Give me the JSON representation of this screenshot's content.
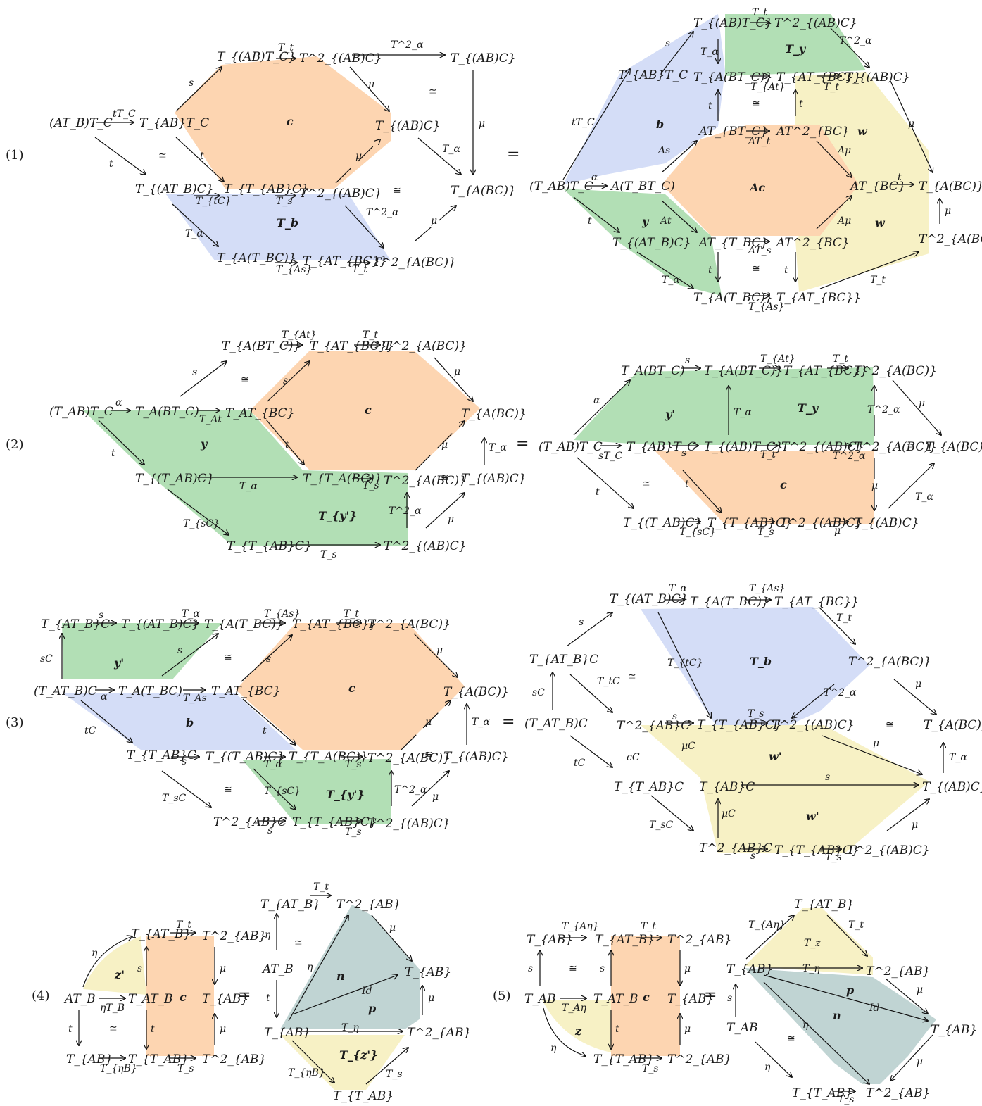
{
  "colors": {
    "orange": "#fdd5b1",
    "blue": "#d4ddf7",
    "green": "#b2dfb5",
    "yellow": "#f7f1c5",
    "teal": "#c0d4d3"
  },
  "rows": [
    {
      "number": "(1)",
      "equals": "=",
      "left": {
        "objects": [
          "(AT_B)T_C",
          "T_{AB}T_C",
          "T_{(AB)T_C}",
          "T^2_{(AB)C}",
          "T_{(AB)C}",
          "T_{(AB)C}",
          "T_{(AT_B)C}",
          "T_{T_{AB}C}",
          "T^2_{(AB)C}",
          "T_{A(BC)}",
          "T_{A(T_BC)}",
          "T_{AT_{BC}}",
          "T^2_{A(BC)}"
        ],
        "labels": [
          "tT_C",
          "t",
          "s",
          "T_t",
          "T^2_α",
          "μ",
          "μ",
          "T_α",
          "t",
          "μ",
          "T_{tC}",
          "T_s",
          "T^2_α",
          "T_α",
          "T_{As}",
          "T_t",
          "μ"
        ],
        "cells": [
          "c",
          "T_b"
        ],
        "isos": [
          "≅",
          "≅",
          "≅"
        ]
      },
      "right": {
        "objects": [
          "(AT_B)T_C",
          "A(T_BT_C)",
          "T_{AB}T_C",
          "T_{(AB)T_C}",
          "T^2_{(AB)C}",
          "T_{A(BT_C)}",
          "T_{AT_{BC}}",
          "T_{(AB)C}",
          "AT_{BT_C}",
          "AT^2_{BC}",
          "AT_{BC}",
          "T_{A(BC)}",
          "T^2_{A(BC)}",
          "T_{(AT_B)C}",
          "AT_{T_BC}",
          "AT^2_{BC}",
          "T_{A(T_BC)}",
          "T_{AT_{BC}}"
        ],
        "labels": [
          "tT_C",
          "α",
          "t",
          "s",
          "T_t",
          "T^2_α",
          "T_α",
          "T_{At}",
          "T_t",
          "t",
          "t",
          "As",
          "AT_t",
          "Aμ",
          "Aμ",
          "At",
          "AT_s",
          "t",
          "μ",
          "t",
          "μ",
          "T_α",
          "t",
          "T_{As}",
          "T_t"
        ],
        "cells": [
          "T_y",
          "b",
          "w",
          "Ac",
          "y",
          "w"
        ],
        "isos": [
          "≅",
          "≅"
        ]
      }
    },
    {
      "number": "(2)",
      "equals": "=",
      "left": {
        "objects": [
          "(T_AB)T_C",
          "T_A(BT_C)",
          "T_AT_{BC}",
          "T_{A(BT_C)}",
          "T_{AT_{BC}}",
          "T^2_{A(BC)}",
          "T_{A(BC)}",
          "T_{(AB)C}",
          "T_{(T_AB)C}",
          "T_{T_A(BC)}",
          "T^2_{A(BC)}",
          "T_{T_{AB}C}",
          "T^2_{(AB)C}"
        ],
        "labels": [
          "α",
          "T_At",
          "s",
          "s",
          "T_{At}",
          "T_t",
          "μ",
          "t",
          "t",
          "T_α",
          "μ",
          "T_s",
          "T_α",
          "T_{sC}",
          "T^2_α",
          "μ",
          "T_s"
        ],
        "cells": [
          "c",
          "y",
          "T_{y'}"
        ],
        "isos": [
          "≅",
          "≅"
        ]
      },
      "right": {
        "objects": [
          "(T_AB)T_C",
          "T_A(BT_C)",
          "T_{A(BT_C)}",
          "T_{AT_{BC}}",
          "T^2_{A(BC)}",
          "T_{AB}T_C",
          "T_{(AB)T_C}",
          "T^2_{(AB)C}",
          "T^2_{A(BC)}",
          "T_{A(BC)}",
          "T_{(T_AB)C}",
          "T_{T_{AB}C}",
          "T^2_{(AB)C}",
          "T_{(AB)C}"
        ],
        "labels": [
          "α",
          "s",
          "T_{At}",
          "T_t",
          "sT_C",
          "s",
          "T_t",
          "T^2_α",
          "T_α",
          "T^2_α",
          "μ",
          "t",
          "t",
          "μ",
          "T_{sC}",
          "T_s",
          "μ",
          "T_α"
        ],
        "cells": [
          "y'",
          "T_y",
          "c"
        ],
        "isos": [
          "≅",
          "≅"
        ]
      }
    },
    {
      "number": "(3)",
      "equals": "=",
      "left": {
        "objects": [
          "T_{AT_B}C",
          "T_{(AT_B)C}",
          "T_{A(T_BC)}",
          "T_{AT_{BC}}",
          "T^2_{A(BC)}",
          "(T_AT_B)C",
          "T_A(T_BC)",
          "T_AT_{BC}",
          "T_{A(BC)}",
          "T_{(AB)C}",
          "T_{T_AB}C",
          "T_{(T_AB)C}",
          "T_{T_A(BC)}",
          "T^2_{A(BC)}",
          "T^2_{AB}C",
          "T_{T_{AB}C}",
          "T^2_{(AB)C}"
        ],
        "labels": [
          "s",
          "T_α",
          "T_{As}",
          "T_t",
          "sC",
          "s",
          "s",
          "α",
          "T_As",
          "μ",
          "tC",
          "t",
          "μ",
          "T_α",
          "s",
          "T_α",
          "T_s",
          "T_sC",
          "T_{sC}",
          "T^2_α",
          "μ",
          "s",
          "T_s"
        ],
        "cells": [
          "y'",
          "b",
          "c",
          "T_{y'}"
        ],
        "isos": [
          "≅",
          "≅",
          "≅"
        ]
      },
      "right": {
        "objects": [
          "T_{(AT_B)C}",
          "T_{A(T_BC)}",
          "T_{AT_{BC}}",
          "T_{AT_B}C",
          "T^2_{A(BC)}",
          "(T_AT_B)C",
          "T^2_{AB}C",
          "T_{T_{AB}C}",
          "T^2_{(AB)C}",
          "T_{A(BC)}",
          "T_{T_AB}C",
          "T_{AB}C",
          "T_{(AB)C}",
          "T^2_{AB}C",
          "T_{T_{AB}C}",
          "T^2_{(AB)C}"
        ],
        "labels": [
          "s",
          "T_α",
          "T_{As}",
          "T_t",
          "sC",
          "T_tC",
          "T_{tC}",
          "T^2_α",
          "μ",
          "s",
          "T_s",
          "μ",
          "tC",
          "cC",
          "μC",
          "s",
          "T_α",
          "T_sC",
          "μC",
          "μ",
          "s",
          "T_s"
        ],
        "cells": [
          "T_b",
          "w'",
          "w'"
        ],
        "isos": [
          "≅",
          "≅"
        ]
      }
    },
    {
      "number": "(4)",
      "equals": "=",
      "left": {
        "objects": [
          "AT_B",
          "T_{AT_B}",
          "T^2_{AB}",
          "T_AT_B",
          "T_{AB}",
          "T_{AB}",
          "T_{T_AB}",
          "T^2_{AB}"
        ],
        "labels": [
          "η",
          "T_t",
          "s",
          "μ",
          "ηT_B",
          "t",
          "t",
          "μ",
          "T_{ηB}",
          "T_s"
        ],
        "cells": [
          "z'",
          "c"
        ],
        "isos": [
          "≅"
        ]
      },
      "right": {
        "objects": [
          "T_{AT_B}",
          "T^2_{AB}",
          "AT_B",
          "T_{AB}",
          "T_{AB}",
          "T^2_{AB}",
          "T_{T_AB}"
        ],
        "labels": [
          "T_t",
          "η",
          "μ",
          "η",
          "t",
          "Id",
          "μ",
          "T_η",
          "T_{ηB}",
          "T_s"
        ],
        "cells": [
          "n",
          "p",
          "T_{z'}"
        ],
        "isos": [
          "≅"
        ]
      }
    },
    {
      "number": "(5)",
      "equals": "=",
      "left": {
        "objects": [
          "T_{AB}",
          "T_{AT_B}",
          "T^2_{AB}",
          "T_AB",
          "T_AT_B",
          "T_{AB}",
          "T_{T_AB}",
          "T^2_{AB}"
        ],
        "labels": [
          "T_{Aη}",
          "T_t",
          "s",
          "s",
          "μ",
          "T_Aη",
          "t",
          "μ",
          "η",
          "T_s"
        ],
        "cells": [
          "z",
          "c"
        ],
        "isos": [
          "≅"
        ]
      },
      "right": {
        "objects": [
          "T_{AT_B}",
          "T_{AB}",
          "T^2_{AB}",
          "T_AB",
          "T_{AB}",
          "T_{T_AB}",
          "T^2_{AB}"
        ],
        "labels": [
          "T_{Aη}",
          "T_t",
          "T_z",
          "T_η",
          "s",
          "Id",
          "μ",
          "η",
          "μ",
          "η",
          "T_s"
        ],
        "cells": [
          "p",
          "n"
        ],
        "isos": [
          "≅"
        ]
      }
    }
  ]
}
